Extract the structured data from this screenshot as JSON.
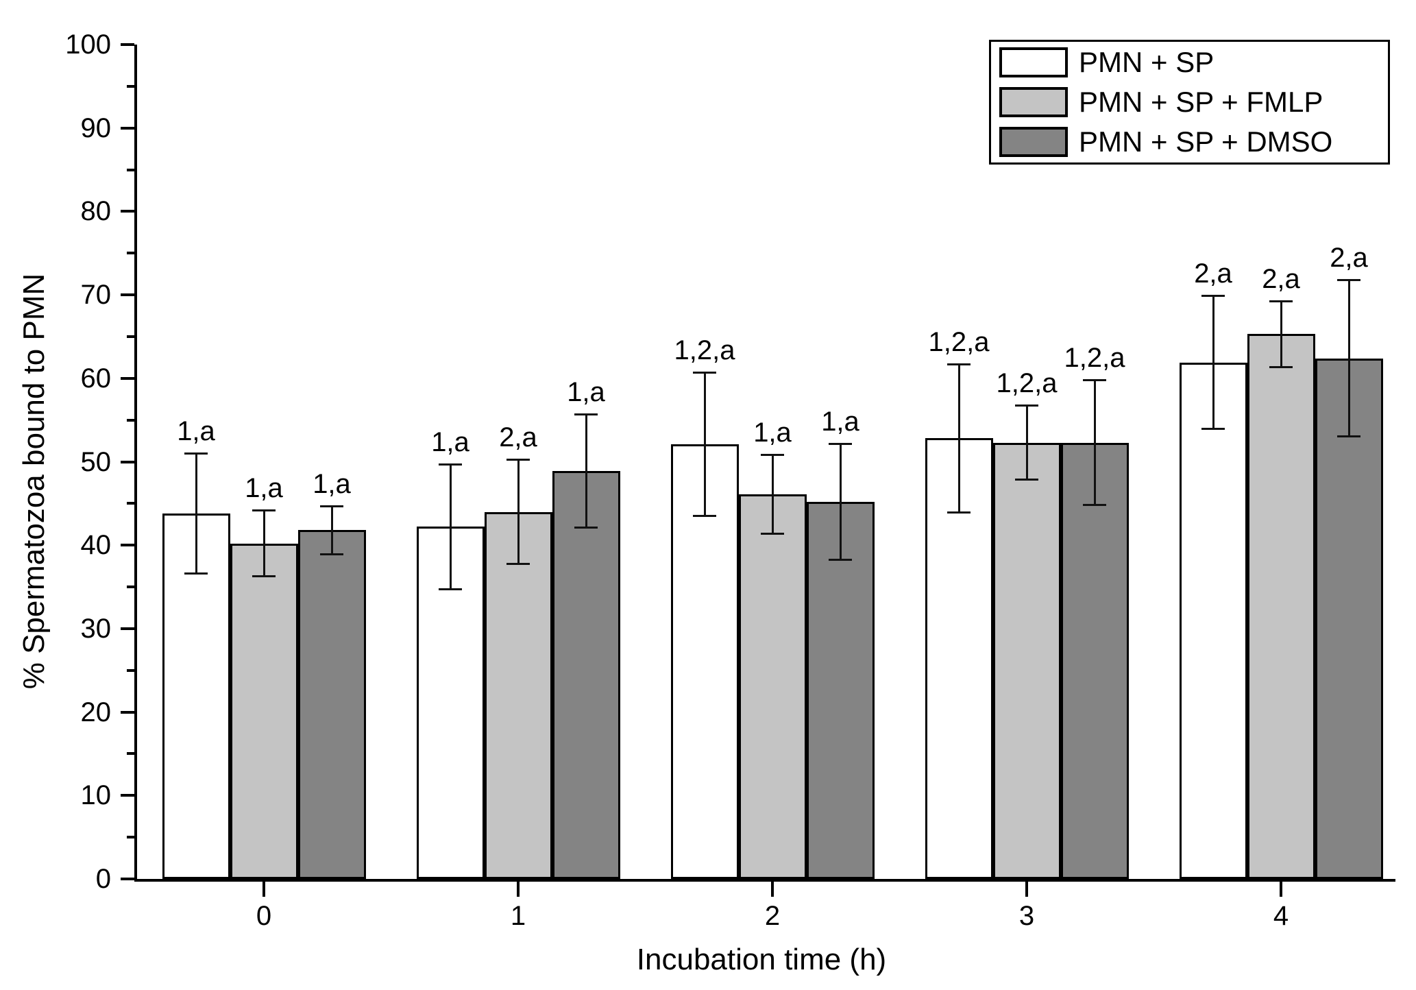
{
  "chart_data": {
    "type": "bar",
    "title": "",
    "xlabel": "Incubation time (h)",
    "ylabel": "% Spermatozoa bound to PMN",
    "categories": [
      "0",
      "1",
      "2",
      "3",
      "4"
    ],
    "ylim": [
      0,
      100
    ],
    "y_major_step": 10,
    "y_minor_step": 5,
    "grid": false,
    "legend_position": "top-right",
    "bar_edge_color": "#000000",
    "error_bar_color": "#111111",
    "series": [
      {
        "name": "PMN + SP",
        "fill": "#ffffff",
        "values": [
          43.8,
          42.2,
          52.1,
          52.8,
          61.9
        ],
        "errors": [
          7.2,
          7.5,
          8.6,
          8.9,
          8.0
        ],
        "labels": [
          "1,a",
          "1,a",
          "1,2,a",
          "1,2,a",
          "2,a"
        ]
      },
      {
        "name": "PMN + SP + FMLP",
        "fill": "#c4c4c4",
        "values": [
          40.2,
          44.0,
          46.1,
          52.3,
          65.3
        ],
        "errors": [
          4.0,
          6.3,
          4.8,
          4.5,
          4.0
        ],
        "labels": [
          "1,a",
          "2,a",
          "1,a",
          "1,2,a",
          "2,a"
        ]
      },
      {
        "name": "PMN + SP + DMSO",
        "fill": "#848484",
        "values": [
          41.8,
          48.9,
          45.2,
          52.3,
          62.4
        ],
        "errors": [
          2.9,
          6.8,
          7.0,
          7.5,
          9.4
        ],
        "labels": [
          "1,a",
          "1,a",
          "1,a",
          "1,2,a",
          "2,a"
        ]
      }
    ]
  }
}
